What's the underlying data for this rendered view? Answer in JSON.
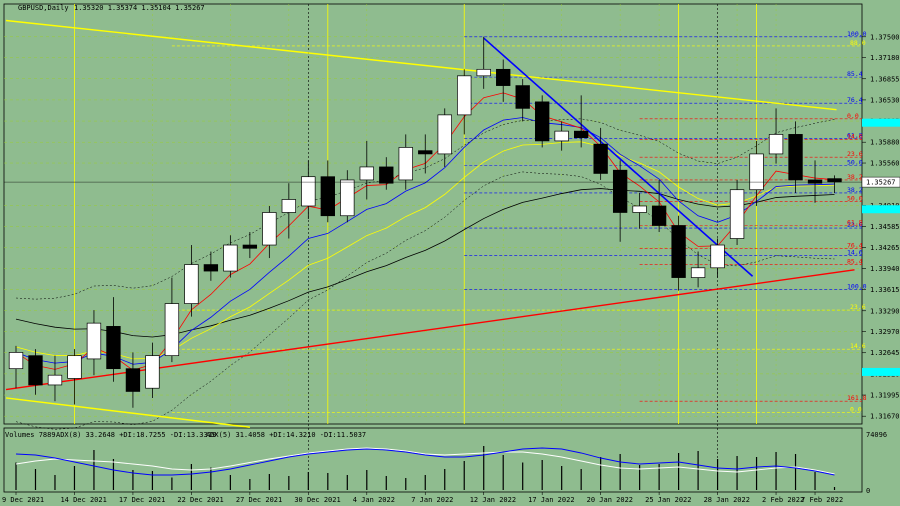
{
  "header": {
    "symbol": "GBPUSD,Daily",
    "ohlc": "1.35320 1.35374 1.35104 1.35267"
  },
  "volume_header": {
    "label": "Volumes 7889",
    "adx8": "ADX(8) 33.2648 +DI:18.7255 -DI:13.3319",
    "adx5": "ADX(5) 31.4058 +DI:14.3210 -DI:11.5037",
    "max_label": "74096",
    "min_label": "0"
  },
  "colors": {
    "background": "#8fbc8f",
    "grid": "#9acd32",
    "bull": "#ffffff",
    "bear": "#000000",
    "upper_trend": "#ffff00",
    "support": "#ff0000",
    "down_trend": "#0000ff",
    "fibo_blue": "#0000ff",
    "fibo_red": "#ff0000",
    "fibo_yellow": "#ffff00",
    "price_tag": "#00ffff",
    "ema_blue": "#0000ff",
    "ema_red": "#ff0000",
    "ema_yellow": "#ffff00",
    "ma_black": "#000000"
  },
  "chart_data": {
    "type": "candlestick",
    "ylim": [
      1.3155,
      1.3785
    ],
    "price_ticks": [
      "1.37500",
      "1.37180",
      "1.36855",
      "1.36530",
      "1.36205",
      "1.35880",
      "1.35560",
      "1.35267",
      "1.34910",
      "1.34585",
      "1.34265",
      "1.33940",
      "1.33615",
      "1.33290",
      "1.32970",
      "1.32645",
      "1.32320",
      "1.31995",
      "1.31670"
    ],
    "current_price": "1.35267",
    "date_labels": [
      "9 Dec 2021",
      "14 Dec 2021",
      "17 Dec 2021",
      "22 Dec 2021",
      "27 Dec 2021",
      "30 Dec 2021",
      "4 Jan 2022",
      "7 Jan 2022",
      "12 Jan 2022",
      "17 Jan 2022",
      "20 Jan 2022",
      "25 Jan 2022",
      "28 Jan 2022",
      "2 Feb 2022",
      "7 Feb 2022"
    ],
    "candles": [
      {
        "o": 1.324,
        "h": 1.3275,
        "l": 1.321,
        "c": 1.3265
      },
      {
        "o": 1.326,
        "h": 1.327,
        "l": 1.32,
        "c": 1.3215
      },
      {
        "o": 1.3215,
        "h": 1.326,
        "l": 1.319,
        "c": 1.323
      },
      {
        "o": 1.3225,
        "h": 1.327,
        "l": 1.3185,
        "c": 1.326
      },
      {
        "o": 1.3255,
        "h": 1.333,
        "l": 1.323,
        "c": 1.331
      },
      {
        "o": 1.3305,
        "h": 1.335,
        "l": 1.322,
        "c": 1.324
      },
      {
        "o": 1.324,
        "h": 1.3265,
        "l": 1.318,
        "c": 1.3205
      },
      {
        "o": 1.321,
        "h": 1.328,
        "l": 1.3195,
        "c": 1.326
      },
      {
        "o": 1.326,
        "h": 1.338,
        "l": 1.325,
        "c": 1.334
      },
      {
        "o": 1.334,
        "h": 1.343,
        "l": 1.332,
        "c": 1.34
      },
      {
        "o": 1.34,
        "h": 1.342,
        "l": 1.3375,
        "c": 1.339
      },
      {
        "o": 1.339,
        "h": 1.3445,
        "l": 1.338,
        "c": 1.343
      },
      {
        "o": 1.343,
        "h": 1.345,
        "l": 1.341,
        "c": 1.3425
      },
      {
        "o": 1.343,
        "h": 1.349,
        "l": 1.341,
        "c": 1.348
      },
      {
        "o": 1.348,
        "h": 1.3525,
        "l": 1.344,
        "c": 1.35
      },
      {
        "o": 1.349,
        "h": 1.356,
        "l": 1.347,
        "c": 1.3535
      },
      {
        "o": 1.3535,
        "h": 1.356,
        "l": 1.3465,
        "c": 1.3475
      },
      {
        "o": 1.3475,
        "h": 1.3545,
        "l": 1.3465,
        "c": 1.353
      },
      {
        "o": 1.353,
        "h": 1.359,
        "l": 1.35,
        "c": 1.355
      },
      {
        "o": 1.355,
        "h": 1.3565,
        "l": 1.3515,
        "c": 1.3525
      },
      {
        "o": 1.353,
        "h": 1.36,
        "l": 1.3515,
        "c": 1.358
      },
      {
        "o": 1.3575,
        "h": 1.36,
        "l": 1.354,
        "c": 1.357
      },
      {
        "o": 1.357,
        "h": 1.364,
        "l": 1.355,
        "c": 1.363
      },
      {
        "o": 1.363,
        "h": 1.37,
        "l": 1.36,
        "c": 1.369
      },
      {
        "o": 1.369,
        "h": 1.375,
        "l": 1.367,
        "c": 1.37
      },
      {
        "o": 1.37,
        "h": 1.3715,
        "l": 1.365,
        "c": 1.3675
      },
      {
        "o": 1.3675,
        "h": 1.3685,
        "l": 1.362,
        "c": 1.364
      },
      {
        "o": 1.365,
        "h": 1.366,
        "l": 1.358,
        "c": 1.359
      },
      {
        "o": 1.359,
        "h": 1.362,
        "l": 1.3575,
        "c": 1.3605
      },
      {
        "o": 1.3605,
        "h": 1.366,
        "l": 1.358,
        "c": 1.3595
      },
      {
        "o": 1.3585,
        "h": 1.361,
        "l": 1.353,
        "c": 1.354
      },
      {
        "o": 1.3545,
        "h": 1.356,
        "l": 1.3435,
        "c": 1.348
      },
      {
        "o": 1.348,
        "h": 1.351,
        "l": 1.3455,
        "c": 1.349
      },
      {
        "o": 1.349,
        "h": 1.353,
        "l": 1.345,
        "c": 1.346
      },
      {
        "o": 1.346,
        "h": 1.3475,
        "l": 1.336,
        "c": 1.338
      },
      {
        "o": 1.338,
        "h": 1.342,
        "l": 1.3365,
        "c": 1.3395
      },
      {
        "o": 1.3395,
        "h": 1.344,
        "l": 1.338,
        "c": 1.343
      },
      {
        "o": 1.344,
        "h": 1.353,
        "l": 1.343,
        "c": 1.3515
      },
      {
        "o": 1.3515,
        "h": 1.359,
        "l": 1.349,
        "c": 1.357
      },
      {
        "o": 1.357,
        "h": 1.364,
        "l": 1.3555,
        "c": 1.36
      },
      {
        "o": 1.36,
        "h": 1.362,
        "l": 1.351,
        "c": 1.353
      },
      {
        "o": 1.353,
        "h": 1.356,
        "l": 1.3495,
        "c": 1.3525
      },
      {
        "o": 1.3532,
        "h": 1.3537,
        "l": 1.351,
        "c": 1.3527
      }
    ],
    "volumes": [
      0.55,
      0.42,
      0.3,
      0.48,
      0.8,
      0.62,
      0.4,
      0.38,
      0.25,
      0.52,
      0.45,
      0.3,
      0.22,
      0.32,
      0.28,
      0.36,
      0.34,
      0.3,
      0.4,
      0.28,
      0.24,
      0.3,
      0.42,
      0.58,
      0.88,
      0.7,
      0.55,
      0.6,
      0.48,
      0.42,
      0.66,
      0.72,
      0.5,
      0.52,
      0.74,
      0.78,
      0.62,
      0.68,
      0.66,
      0.76,
      0.72,
      0.36,
      0.06
    ],
    "adx_white": [
      0.52,
      0.58,
      0.62,
      0.6,
      0.58,
      0.56,
      0.52,
      0.48,
      0.42,
      0.4,
      0.42,
      0.48,
      0.55,
      0.62,
      0.68,
      0.74,
      0.78,
      0.82,
      0.84,
      0.82,
      0.78,
      0.72,
      0.7,
      0.72,
      0.74,
      0.76,
      0.76,
      0.72,
      0.66,
      0.58,
      0.5,
      0.44,
      0.42,
      0.44,
      0.46,
      0.42,
      0.38,
      0.36,
      0.4,
      0.44,
      0.46,
      0.4,
      0.32
    ],
    "adx_blue": [
      0.72,
      0.7,
      0.64,
      0.56,
      0.48,
      0.4,
      0.34,
      0.3,
      0.3,
      0.32,
      0.36,
      0.42,
      0.5,
      0.58,
      0.66,
      0.72,
      0.76,
      0.8,
      0.82,
      0.8,
      0.76,
      0.7,
      0.66,
      0.66,
      0.7,
      0.76,
      0.82,
      0.84,
      0.82,
      0.74,
      0.64,
      0.56,
      0.52,
      0.54,
      0.56,
      0.5,
      0.44,
      0.42,
      0.46,
      0.48,
      0.44,
      0.38,
      0.3
    ],
    "fibo_blue": [
      {
        "label": "100.0",
        "price": 1.375
      },
      {
        "label": "85.4",
        "price": 1.3688
      },
      {
        "label": "76.4",
        "price": 1.3648
      },
      {
        "label": "61.8",
        "price": 1.3594
      },
      {
        "label": "50.0",
        "price": 1.3552
      },
      {
        "label": "38.2",
        "price": 1.351
      },
      {
        "label": "23.6",
        "price": 1.3456
      },
      {
        "label": "14.6",
        "price": 1.3414
      },
      {
        "label": "100.0",
        "price": 1.3362
      }
    ],
    "fibo_red": [
      {
        "label": "0.0",
        "price": 1.3624
      },
      {
        "label": "14.6",
        "price": 1.3592
      },
      {
        "label": "23.6",
        "price": 1.3565
      },
      {
        "label": "38.2",
        "price": 1.353
      },
      {
        "label": "50.0",
        "price": 1.3497
      },
      {
        "label": "61.8",
        "price": 1.346
      },
      {
        "label": "76.4",
        "price": 1.3425
      },
      {
        "label": "85.4",
        "price": 1.34
      },
      {
        "label": "161.8",
        "price": 1.319
      }
    ],
    "fibo_yellow": [
      {
        "label": "88.0",
        "price": 1.3736
      },
      {
        "label": "23.6",
        "price": 1.333
      },
      {
        "label": "14.6",
        "price": 1.327
      },
      {
        "label": "0.0",
        "price": 1.3173
      }
    ]
  }
}
